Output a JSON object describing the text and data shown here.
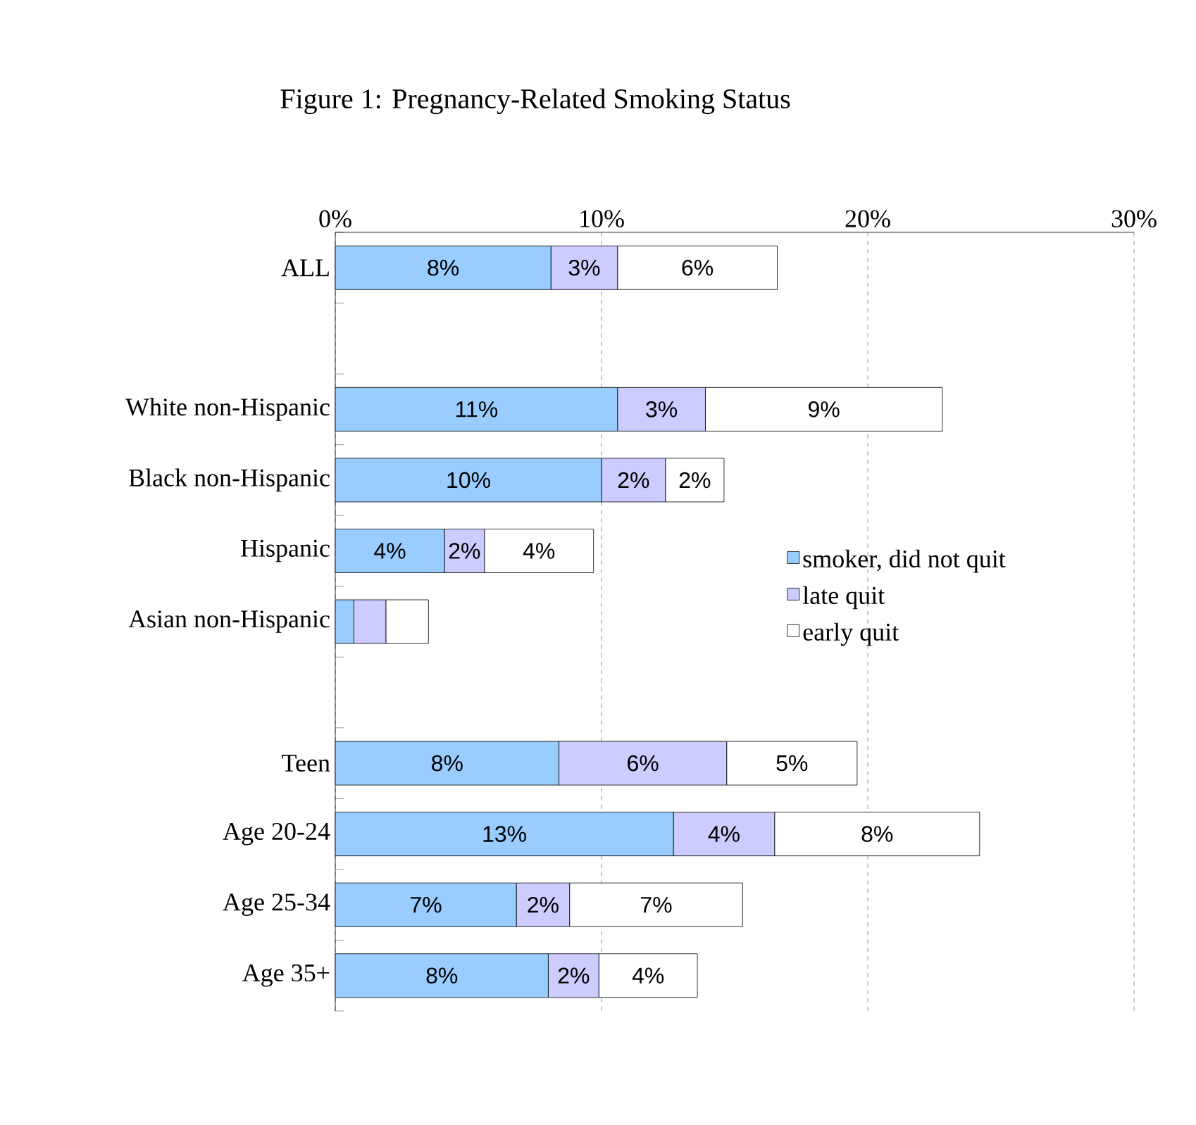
{
  "chart_data": {
    "type": "bar",
    "orientation": "horizontal",
    "stacked": true,
    "title": "Figure 1: Pregnancy-Related Smoking Status",
    "categories": [
      "ALL",
      null,
      "White non-Hispanic",
      "Black non-Hispanic",
      "Hispanic",
      "Asian non-Hispanic",
      null,
      "Teen",
      "Age 20-24",
      "Age 25-34",
      "Age 35+"
    ],
    "series": [
      {
        "name": "smoker, did not quit",
        "color": "#99ccff",
        "values": [
          8.1,
          null,
          10.6,
          10.0,
          4.1,
          0.7,
          null,
          8.4,
          12.7,
          6.8,
          8.0
        ],
        "value_labels": [
          "8%",
          null,
          "11%",
          "10%",
          "4%",
          null,
          null,
          "8%",
          "13%",
          "7%",
          "8%"
        ]
      },
      {
        "name": "late quit",
        "color": "#ccccff",
        "values": [
          2.5,
          null,
          3.3,
          2.4,
          1.5,
          1.2,
          null,
          6.3,
          3.8,
          2.0,
          1.9
        ],
        "value_labels": [
          "3%",
          null,
          "3%",
          "2%",
          "2%",
          null,
          null,
          "6%",
          "4%",
          "2%",
          "2%"
        ]
      },
      {
        "name": "early quit",
        "color": "#ffffff",
        "values": [
          6.0,
          null,
          8.9,
          2.2,
          4.1,
          1.6,
          null,
          4.9,
          7.7,
          6.5,
          3.7
        ],
        "value_labels": [
          "6%",
          null,
          "9%",
          "2%",
          "4%",
          null,
          null,
          "5%",
          "8%",
          "7%",
          "4%"
        ]
      }
    ],
    "xlim": [
      0,
      30
    ],
    "xticks": [
      {
        "value": 0,
        "label": "0%"
      },
      {
        "value": 10,
        "label": "10%"
      },
      {
        "value": 20,
        "label": "20%"
      },
      {
        "value": 30,
        "label": "30%"
      }
    ],
    "grid": "x",
    "legend": "right"
  }
}
